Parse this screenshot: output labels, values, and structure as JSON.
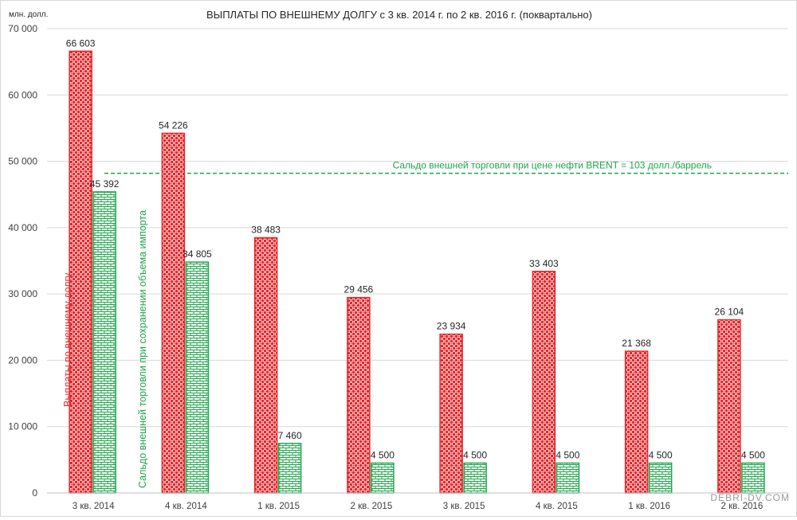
{
  "chart_data": {
    "type": "bar",
    "title": "ВЫПЛАТЫ ПО ВНЕШНЕМУ ДОЛГУ с 3 кв. 2014 г. по 2 кв. 2016 г. (поквартально)",
    "unit_label": "млн. долл.",
    "categories": [
      "3 кв. 2014",
      "4 кв. 2014",
      "1 кв. 2015",
      "2 кв. 2015",
      "3 кв. 2015",
      "4 кв. 2015",
      "1 кв. 2016",
      "2 кв. 2016"
    ],
    "series": [
      {
        "name": "Выплаты по внешнему долгу",
        "color": "#e8262a",
        "values": [
          66603,
          54226,
          38483,
          29456,
          23934,
          33403,
          21368,
          26104
        ],
        "value_labels": [
          "66 603",
          "54 226",
          "38 483",
          "29 456",
          "23 934",
          "33 403",
          "21 368",
          "26 104"
        ]
      },
      {
        "name": "Сальдо внешней торговли при сохранении объема импорта",
        "color": "#1ea64a",
        "values": [
          45392,
          34805,
          7460,
          4500,
          4500,
          4500,
          4500,
          4500
        ],
        "value_labels": [
          "45 392",
          "34 805",
          "7 460",
          "4 500",
          "4 500",
          "4 500",
          "4 500",
          "4 500"
        ]
      }
    ],
    "reference_line": {
      "label": "Сальдо внешней торговли при цене нефти BRENT = 103 долл./баррель",
      "value": 48200,
      "color": "#1ea64a",
      "style": "dashed"
    },
    "ylim": [
      0,
      70000
    ],
    "yticks": [
      0,
      10000,
      20000,
      30000,
      40000,
      50000,
      60000,
      70000
    ],
    "ytick_labels": [
      "0",
      "10 000",
      "20 000",
      "30 000",
      "40 000",
      "50 000",
      "60 000",
      "70 000"
    ],
    "grid": true,
    "legend": "none"
  },
  "watermark": "DEBRI-DV.COM"
}
